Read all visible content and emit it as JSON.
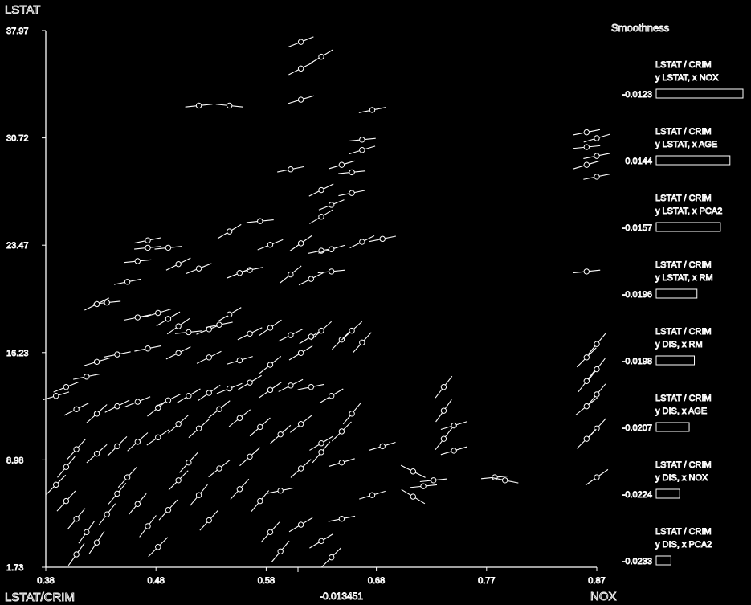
{
  "chart_data": {
    "type": "scatter",
    "title": "",
    "xlabel": "NOX",
    "ylabel": "LSTAT",
    "corner_label": "LSTAT/CRIM",
    "x_marker_value": "-0.013451",
    "xlim": [
      0.33,
      0.87
    ],
    "ylim": [
      1.73,
      37.97
    ],
    "xticks": [
      "0.38",
      "0.48",
      "0.58",
      "0.68",
      "0.77",
      "0.87"
    ],
    "yticks": [
      "1.73",
      "8.98",
      "16.23",
      "23.47",
      "30.72",
      "37.97"
    ],
    "y_top_label": "37.97",
    "point_style": "circle-with-slope-segment",
    "series": [
      {
        "values": [
          [
            0.58,
            37.2,
            0.4
          ],
          [
            0.6,
            36.2,
            0.6
          ],
          [
            0.58,
            35.4,
            0.5
          ],
          [
            0.48,
            32.9,
            0.1
          ],
          [
            0.51,
            32.9,
            -0.1
          ],
          [
            0.58,
            33.3,
            0.3
          ],
          [
            0.65,
            32.6,
            0.2
          ],
          [
            0.64,
            30.6,
            0.1
          ],
          [
            0.64,
            29.9,
            0.3
          ],
          [
            0.62,
            28.9,
            0.3
          ],
          [
            0.63,
            28.4,
            0.1
          ],
          [
            0.57,
            28.6,
            0.2
          ],
          [
            0.6,
            27.2,
            0.5
          ],
          [
            0.63,
            27.0,
            0.2
          ],
          [
            0.61,
            26.2,
            0.4
          ],
          [
            0.6,
            25.4,
            0.6
          ],
          [
            0.54,
            25.1,
            0.1
          ],
          [
            0.51,
            24.4,
            0.6
          ],
          [
            0.55,
            23.5,
            0.4
          ],
          [
            0.58,
            23.6,
            0.7
          ],
          [
            0.6,
            23.1,
            0.2
          ],
          [
            0.61,
            23.2,
            0.3
          ],
          [
            0.64,
            23.7,
            0.5
          ],
          [
            0.66,
            23.9,
            0.2
          ],
          [
            0.61,
            21.7,
            0.1
          ],
          [
            0.59,
            21.2,
            0.5
          ],
          [
            0.57,
            21.5,
            0.8
          ],
          [
            0.53,
            21.8,
            0.2
          ],
          [
            0.52,
            21.6,
            0.4
          ],
          [
            0.48,
            21.9,
            0.4
          ],
          [
            0.46,
            22.2,
            0.5
          ],
          [
            0.43,
            23.3,
            0.1
          ],
          [
            0.43,
            23.8,
            0.2
          ],
          [
            0.45,
            23.3,
            0.1
          ],
          [
            0.42,
            22.4,
            0.1
          ],
          [
            0.41,
            21.0,
            0.2
          ],
          [
            0.39,
            19.6,
            0.1
          ],
          [
            0.38,
            19.5,
            0.5
          ],
          [
            0.42,
            18.6,
            0.2
          ],
          [
            0.44,
            18.9,
            0.3
          ],
          [
            0.45,
            18.5,
            0.6
          ],
          [
            0.46,
            18.0,
            0.7
          ],
          [
            0.47,
            17.6,
            0.1
          ],
          [
            0.49,
            17.8,
            0.4
          ],
          [
            0.5,
            18.1,
            0.2
          ],
          [
            0.51,
            18.8,
            0.6
          ],
          [
            0.53,
            17.5,
            0.5
          ],
          [
            0.55,
            17.9,
            0.7
          ],
          [
            0.57,
            17.4,
            0.5
          ],
          [
            0.59,
            17.3,
            0.6
          ],
          [
            0.6,
            17.7,
            0.9
          ],
          [
            0.62,
            17.1,
            1.0
          ],
          [
            0.63,
            17.7,
            0.9
          ],
          [
            0.64,
            16.9,
            1.1
          ],
          [
            0.58,
            16.2,
            0.6
          ],
          [
            0.55,
            15.4,
            0.8
          ],
          [
            0.52,
            15.7,
            0.3
          ],
          [
            0.49,
            15.9,
            0.5
          ],
          [
            0.46,
            16.2,
            0.5
          ],
          [
            0.43,
            16.5,
            0.2
          ],
          [
            0.4,
            16.1,
            0.2
          ],
          [
            0.38,
            15.6,
            0.3
          ],
          [
            0.37,
            14.6,
            0.2
          ],
          [
            0.35,
            13.9,
            0.4
          ],
          [
            0.34,
            13.3,
            0.3
          ],
          [
            0.36,
            12.4,
            0.5
          ],
          [
            0.38,
            12.1,
            0.9
          ],
          [
            0.4,
            12.6,
            0.5
          ],
          [
            0.42,
            12.9,
            0.4
          ],
          [
            0.44,
            12.5,
            0.8
          ],
          [
            0.45,
            13.0,
            0.5
          ],
          [
            0.47,
            13.3,
            0.6
          ],
          [
            0.49,
            13.5,
            0.7
          ],
          [
            0.51,
            13.8,
            0.4
          ],
          [
            0.53,
            14.2,
            0.6
          ],
          [
            0.55,
            13.7,
            0.7
          ],
          [
            0.57,
            14.0,
            0.5
          ],
          [
            0.59,
            13.9,
            0.2
          ],
          [
            0.61,
            13.3,
            0.6
          ],
          [
            0.63,
            12.1,
            1.2
          ],
          [
            0.62,
            10.9,
            1.0
          ],
          [
            0.6,
            10.1,
            0.6
          ],
          [
            0.58,
            11.4,
            0.8
          ],
          [
            0.56,
            10.7,
            0.9
          ],
          [
            0.54,
            11.2,
            0.9
          ],
          [
            0.52,
            11.8,
            0.8
          ],
          [
            0.5,
            12.4,
            0.8
          ],
          [
            0.48,
            11.1,
            0.9
          ],
          [
            0.46,
            11.4,
            0.9
          ],
          [
            0.44,
            10.5,
            0.7
          ],
          [
            0.42,
            10.2,
            0.9
          ],
          [
            0.4,
            9.9,
            1.0
          ],
          [
            0.38,
            9.4,
            0.9
          ],
          [
            0.36,
            9.7,
            1.1
          ],
          [
            0.35,
            8.5,
            1.2
          ],
          [
            0.34,
            7.3,
            1.0
          ],
          [
            0.35,
            6.2,
            1.1
          ],
          [
            0.36,
            5.0,
            1.2
          ],
          [
            0.37,
            4.1,
            1.4
          ],
          [
            0.36,
            2.6,
            1.4
          ],
          [
            0.38,
            3.4,
            1.5
          ],
          [
            0.39,
            5.3,
            1.3
          ],
          [
            0.4,
            6.7,
            1.2
          ],
          [
            0.41,
            7.8,
            1.1
          ],
          [
            0.42,
            6.0,
            1.2
          ],
          [
            0.43,
            4.5,
            1.3
          ],
          [
            0.44,
            3.1,
            1.0
          ],
          [
            0.45,
            5.6,
            1.1
          ],
          [
            0.46,
            7.6,
            1.0
          ],
          [
            0.47,
            8.8,
            1.1
          ],
          [
            0.48,
            6.6,
            1.2
          ],
          [
            0.49,
            4.9,
            1.1
          ],
          [
            0.5,
            8.4,
            0.8
          ],
          [
            0.52,
            7.0,
            1.1
          ],
          [
            0.53,
            9.2,
            0.9
          ],
          [
            0.54,
            6.2,
            1.2
          ],
          [
            0.55,
            4.1,
            1.1
          ],
          [
            0.56,
            2.8,
            1.2
          ],
          [
            0.58,
            4.6,
            0.6
          ],
          [
            0.56,
            6.9,
            0.2
          ],
          [
            0.58,
            8.4,
            0.9
          ],
          [
            0.6,
            9.5,
            1.2
          ],
          [
            0.62,
            8.8,
            0.3
          ],
          [
            0.66,
            9.9,
            0.3
          ],
          [
            0.69,
            8.2,
            -0.5
          ],
          [
            0.72,
            10.4,
            1.3
          ],
          [
            0.72,
            12.3,
            1.4
          ],
          [
            0.72,
            13.9,
            1.3
          ],
          [
            0.73,
            11.3,
            0.3
          ],
          [
            0.73,
            9.6,
            0.3
          ],
          [
            0.71,
            7.6,
            0.1
          ],
          [
            0.7,
            7.2,
            0.1
          ],
          [
            0.69,
            6.5,
            -0.6
          ],
          [
            0.65,
            6.6,
            0.3
          ],
          [
            0.62,
            5.0,
            0.2
          ],
          [
            0.6,
            3.5,
            0.6
          ],
          [
            0.61,
            2.4,
            1.0
          ],
          [
            0.86,
            31.1,
            0.2
          ],
          [
            0.87,
            30.7,
            0.3
          ],
          [
            0.86,
            30.1,
            0.1
          ],
          [
            0.87,
            29.5,
            0.2
          ],
          [
            0.86,
            28.9,
            0.3
          ],
          [
            0.87,
            28.1,
            0.2
          ],
          [
            0.86,
            21.7,
            0.1
          ],
          [
            0.87,
            16.8,
            1.2
          ],
          [
            0.86,
            15.9,
            1.0
          ],
          [
            0.87,
            15.1,
            1.3
          ],
          [
            0.86,
            14.3,
            1.3
          ],
          [
            0.87,
            13.4,
            1.2
          ],
          [
            0.86,
            12.6,
            0.8
          ],
          [
            0.87,
            11.1,
            1.1
          ],
          [
            0.86,
            10.4,
            1.0
          ],
          [
            0.87,
            7.8,
            0.7
          ],
          [
            0.77,
            7.8,
            0.1
          ],
          [
            0.78,
            7.6,
            -0.2
          ]
        ]
      }
    ]
  },
  "legend": {
    "title": "Smoothness",
    "entries": [
      {
        "line1": "LSTAT / CRIM",
        "line2": "y LSTAT, x NOX",
        "value": "-0.0123",
        "bar": 1.0
      },
      {
        "line1": "LSTAT / CRIM",
        "line2": "y LSTAT, x AGE",
        "value": "0.0144",
        "bar": 0.85
      },
      {
        "line1": "LSTAT / CRIM",
        "line2": "y LSTAT, x PCA2",
        "value": "-0.0157",
        "bar": 0.74
      },
      {
        "line1": "LSTAT / CRIM",
        "line2": "y LSTAT, x RM",
        "value": "-0.0196",
        "bar": 0.47
      },
      {
        "line1": "LSTAT / CRIM",
        "line2": "y DIS, x RM",
        "value": "-0.0198",
        "bar": 0.44
      },
      {
        "line1": "LSTAT / CRIM",
        "line2": "y DIS, x AGE",
        "value": "-0.0207",
        "bar": 0.38
      },
      {
        "line1": "LSTAT / CRIM",
        "line2": "y DIS, x NOX",
        "value": "-0.0224",
        "bar": 0.27
      },
      {
        "line1": "LSTAT / CRIM",
        "line2": "y DIS, x PCA2",
        "value": "-0.0233",
        "bar": 0.17
      }
    ]
  },
  "colors": {
    "background": "#000000",
    "foreground": "#ffffff"
  }
}
